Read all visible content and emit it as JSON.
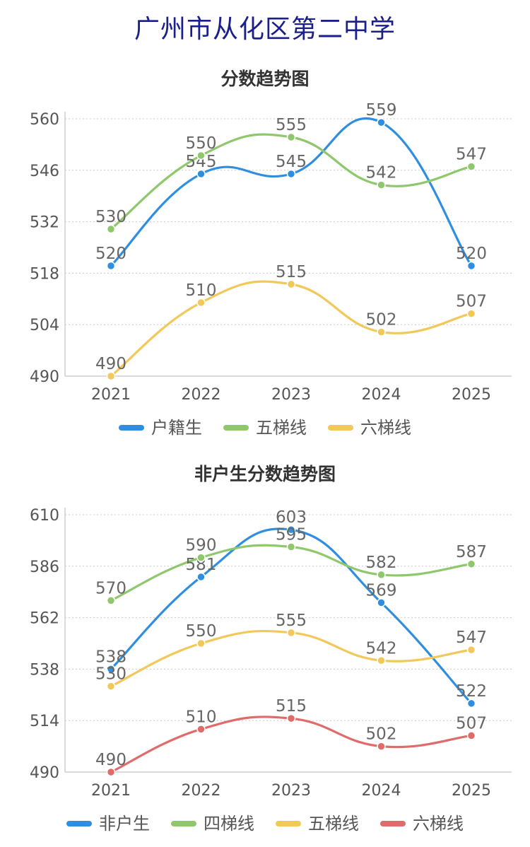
{
  "page": {
    "title": "广州市从化区第二中学"
  },
  "chart_data": [
    {
      "type": "line",
      "title": "分数趋势图",
      "categories": [
        "2021",
        "2022",
        "2023",
        "2024",
        "2025"
      ],
      "yticks": [
        "490",
        "504",
        "518",
        "532",
        "546",
        "560"
      ],
      "ylim": [
        490,
        560
      ],
      "grid": true,
      "legend_position": "bottom",
      "series": [
        {
          "name": "户籍生",
          "color": "#2f8ee0",
          "values": [
            520,
            545,
            545,
            559,
            520
          ]
        },
        {
          "name": "五梯线",
          "color": "#8fc86c",
          "values": [
            530,
            550,
            555,
            542,
            547
          ]
        },
        {
          "name": "六梯线",
          "color": "#f2c85b",
          "values": [
            490,
            510,
            515,
            502,
            507
          ]
        }
      ]
    },
    {
      "type": "line",
      "title": "非户生分数趋势图",
      "categories": [
        "2021",
        "2022",
        "2023",
        "2024",
        "2025"
      ],
      "yticks": [
        "490",
        "514",
        "538",
        "562",
        "586",
        "610"
      ],
      "ylim": [
        490,
        610
      ],
      "grid": true,
      "legend_position": "bottom",
      "series": [
        {
          "name": "非户生",
          "color": "#2f8ee0",
          "values": [
            538,
            581,
            603,
            569,
            522
          ]
        },
        {
          "name": "四梯线",
          "color": "#8fc86c",
          "values": [
            570,
            590,
            595,
            582,
            587
          ]
        },
        {
          "name": "五梯线",
          "color": "#f2c85b",
          "values": [
            530,
            550,
            555,
            542,
            547
          ]
        },
        {
          "name": "六梯线",
          "color": "#e06b6b",
          "values": [
            490,
            510,
            515,
            502,
            507
          ]
        }
      ]
    }
  ]
}
